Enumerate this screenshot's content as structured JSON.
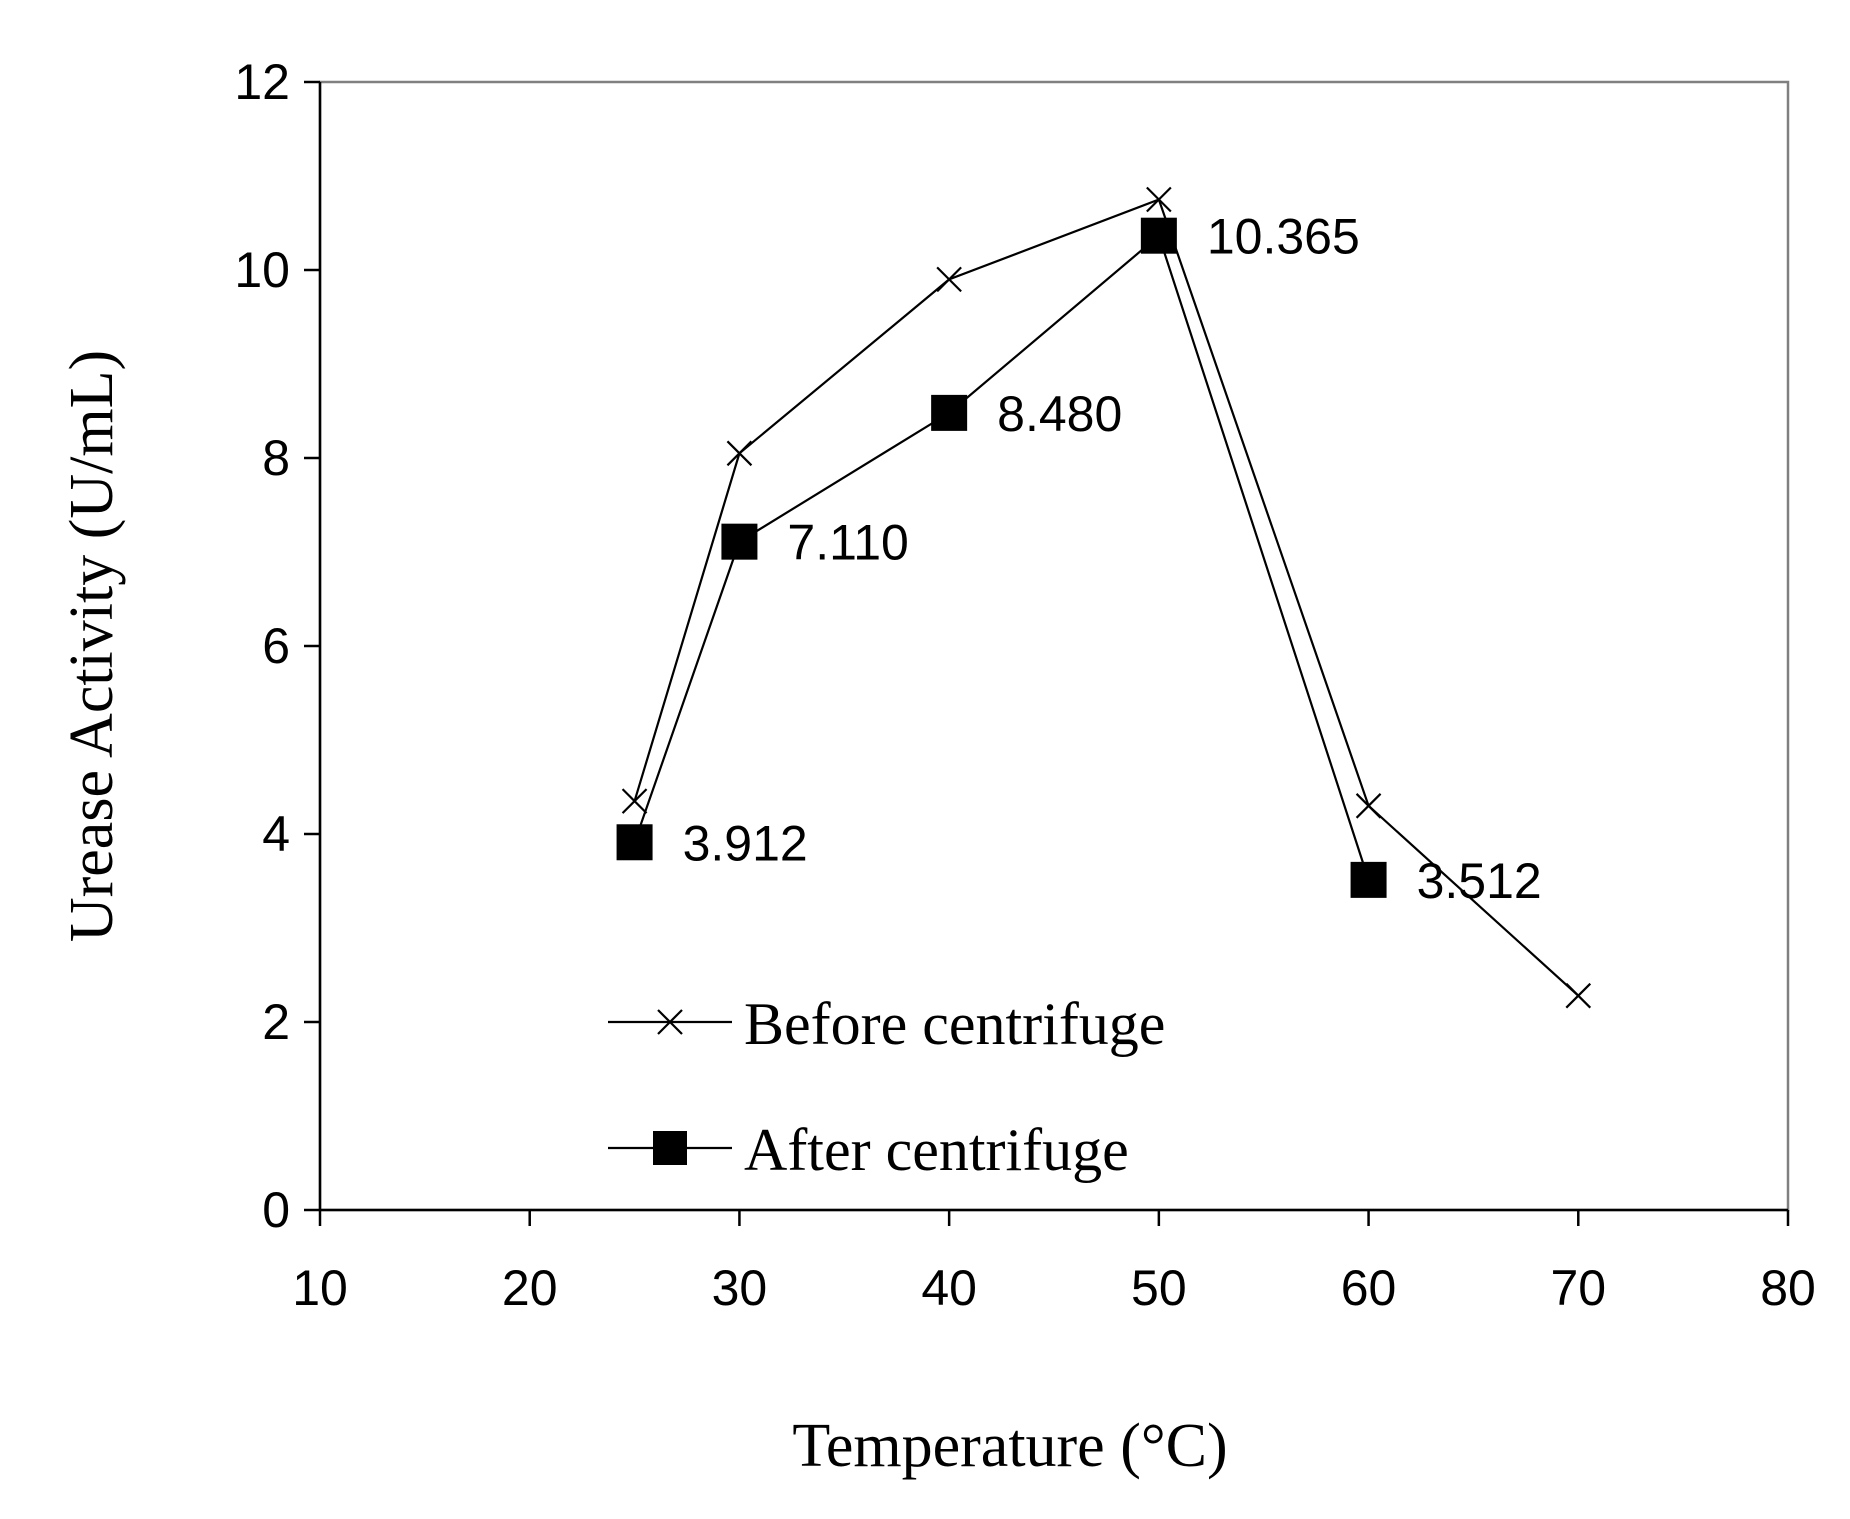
{
  "chart_data": {
    "type": "line",
    "title": "",
    "xlabel": "Temperature (°C)",
    "ylabel": "Urease Activity (U/mL)",
    "xlim": [
      10,
      80
    ],
    "ylim": [
      0,
      12
    ],
    "x_ticks": [
      10,
      20,
      30,
      40,
      50,
      60,
      70,
      80
    ],
    "y_ticks": [
      0,
      2,
      4,
      6,
      8,
      10,
      12
    ],
    "x_tick_labels": [
      "10",
      "20",
      "30",
      "40",
      "50",
      "60",
      "70",
      "80"
    ],
    "y_tick_labels": [
      "0",
      "2",
      "4",
      "6",
      "8",
      "10",
      "12"
    ],
    "grid": false,
    "legend_position": "bottom-left",
    "series": [
      {
        "name": "Before centrifuge",
        "marker": "x-mark",
        "color": "#000000",
        "x": [
          25,
          30,
          40,
          50,
          60,
          70
        ],
        "y": [
          4.35,
          8.05,
          9.9,
          10.75,
          4.3,
          2.28
        ]
      },
      {
        "name": "After centrifuge",
        "marker": "filled-square",
        "color": "#000000",
        "x": [
          25,
          30,
          40,
          50,
          60
        ],
        "y": [
          3.912,
          7.11,
          8.48,
          10.365,
          3.512
        ],
        "data_labels": [
          "3.912",
          "7.110",
          "8.480",
          "10.365",
          "3.512"
        ]
      }
    ]
  }
}
